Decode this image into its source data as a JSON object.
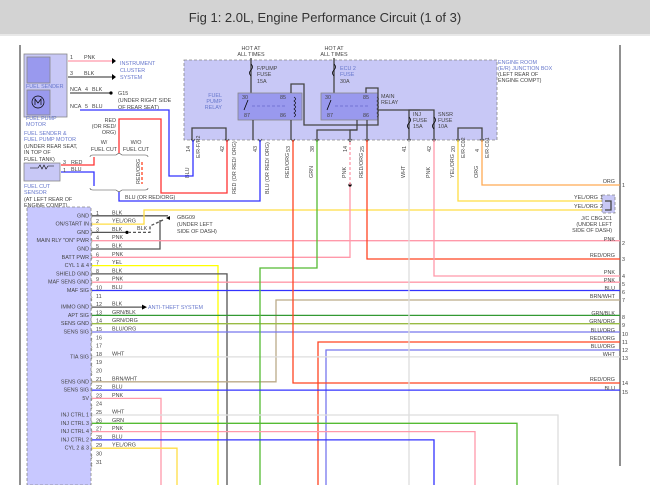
{
  "title": "Fig 1: 2.0L, Engine Performance Circuit (1 of 3)",
  "wire_colors": {
    "PNK": "#ff99aa",
    "BLK": "#555555",
    "RED": "#ff3333",
    "BLU": "#3333ff",
    "GRN": "#55bb33",
    "YEL": "#ffff00",
    "YEL/ORG": "#ffdd44",
    "ORG": "#ffaa55",
    "WHT": "#dddddd",
    "BRN/WHT": "#bbaa88",
    "GRN/BLK": "#339933",
    "GRN/ORG": "#99bb44",
    "BLU/ORG": "#7777ee",
    "RED/ORG": "#ff4422"
  },
  "fuel_sender": {
    "sender_label": "FUEL SENDER",
    "motor_label": [
      "FUEL PUMP",
      "MOTOR"
    ],
    "component": [
      "FUEL SENDER &",
      "FUEL PUMP MOTOR"
    ],
    "location": [
      "(UNDER REAR SEAT,",
      "IN TOP OF",
      "FUEL TANK)"
    ],
    "pin1": "1",
    "pin1_wire": "PNK",
    "pin3": "3",
    "pin3_wire": "BLK",
    "pin4": "4",
    "pin4_wire": "BLK",
    "pin5": "5",
    "pin5_wire": "BLU",
    "nca": "NCA",
    "cluster": [
      "INSTRUMENT",
      "CLUSTER",
      "SYSTEM"
    ],
    "ground": "G15",
    "ground_loc": [
      "(UNDER RIGHT SIDE",
      "OF REAR SEAT)"
    ]
  },
  "fuel_cut": {
    "label": [
      "FUEL CUT",
      "SENSOR"
    ],
    "location": [
      "(AT LEFT REAR OF",
      "ENGINE COMPT)"
    ],
    "pin3": "3",
    "pin3_wire": "RED",
    "pin1": "1",
    "pin1_wire": "BLU",
    "with": [
      "W/",
      "FUEL CUT"
    ],
    "without": [
      "W/O",
      "FUEL CUT"
    ],
    "red_note": [
      "RED",
      "(OR RED/",
      "ORG)"
    ],
    "redorg": "RED/ORG",
    "blu_note": "BLU (OR RED/ORG)"
  },
  "junction_box": {
    "label": [
      "ENGINE ROOM",
      "(E/R) JUNCTION BOX"
    ],
    "location": [
      "(LEFT REAR OF",
      "ENGINE COMPT)"
    ],
    "hot": [
      "HOT AT",
      "ALL TIMES"
    ],
    "fpump_fuse": [
      "F/PUMP",
      "FUSE",
      "15A"
    ],
    "ecu_fuse": [
      "ECU 2",
      "FUSE",
      "30A"
    ],
    "inj_fuse": [
      "INJ",
      "FUSE",
      "15A"
    ],
    "snsr_fuse": [
      "SNSR",
      "FUSE",
      "10A"
    ],
    "fp_relay": [
      "FUEL",
      "PUMP",
      "RELAY"
    ],
    "main_relay": [
      "MAIN",
      "RELAY"
    ],
    "relay_pins": [
      "30",
      "85",
      "87",
      "86"
    ],
    "pins": [
      {
        "num": "14",
        "wire": "BLU",
        "conn": "E/R-F/R2"
      },
      {
        "num": "42",
        "wire": "RED (OR RED/ ORG)",
        "conn": ""
      },
      {
        "num": "43",
        "wire": "BLU (OR RED/ ORG)",
        "conn": ""
      },
      {
        "num": "53",
        "wire": "RED/ORG",
        "conn": ""
      },
      {
        "num": "38",
        "wire": "GRN",
        "conn": ""
      },
      {
        "num": "14",
        "wire": "PNK",
        "conn": ""
      },
      {
        "num": "25",
        "wire": "RED/ORG",
        "conn": ""
      },
      {
        "num": "41",
        "wire": "WHT",
        "conn": ""
      },
      {
        "num": "42",
        "wire": "PNK",
        "conn": ""
      },
      {
        "num": "20",
        "wire": "YEL/ORG",
        "conn": "E/R-C02"
      },
      {
        "num": "4",
        "wire": "ORG",
        "conn": "E/R-C01"
      }
    ]
  },
  "ground_g": {
    "name": "GBG09",
    "location": [
      "(UNDER LEFT",
      "SIDE OF DASH)"
    ],
    "wire": "BLK"
  },
  "anti_theft": "ANTI-THEFT SYSTEM",
  "jc": {
    "name": "J/C CBGJC1",
    "location": [
      "(UNDER LEFT",
      "SIDE OF DASH)"
    ],
    "pins": [
      {
        "num": "1",
        "wire": "YEL/ORG"
      },
      {
        "num": "2",
        "wire": "YEL/ORG"
      }
    ]
  },
  "ecm_pins": [
    {
      "num": "1",
      "label": "GND",
      "wire": "BLK"
    },
    {
      "num": "2",
      "label": "ON/START IN",
      "wire": "YEL/ORG"
    },
    {
      "num": "3",
      "label": "GND",
      "wire": "BLK"
    },
    {
      "num": "4",
      "label": "MAIN RLY \"ON\" PWR",
      "wire": "PNK"
    },
    {
      "num": "5",
      "label": "GND",
      "wire": "BLK"
    },
    {
      "num": "6",
      "label": "BATT PWR",
      "wire": "PNK"
    },
    {
      "num": "7",
      "label": "CYL 1 & 4",
      "wire": "YEL"
    },
    {
      "num": "8",
      "label": "SHIELD GND",
      "wire": "BLK"
    },
    {
      "num": "9",
      "label": "MAF SENS GND",
      "wire": "PNK"
    },
    {
      "num": "10",
      "label": "MAF SIG",
      "wire": "BLU"
    },
    {
      "num": "11",
      "label": "",
      "wire": ""
    },
    {
      "num": "12",
      "label": "IMMO GND",
      "wire": "BLK"
    },
    {
      "num": "13",
      "label": "APT SIG",
      "wire": "GRN/BLK"
    },
    {
      "num": "14",
      "label": "SENS GND",
      "wire": "GRN/ORG"
    },
    {
      "num": "15",
      "label": "SENS SIG",
      "wire": "BLU/ORG"
    },
    {
      "num": "16",
      "label": "",
      "wire": ""
    },
    {
      "num": "17",
      "label": "",
      "wire": ""
    },
    {
      "num": "18",
      "label": "TIA SIG",
      "wire": "WHT"
    },
    {
      "num": "19",
      "label": "",
      "wire": ""
    },
    {
      "num": "20",
      "label": "",
      "wire": ""
    },
    {
      "num": "21",
      "label": "SENS GND",
      "wire": "BRN/WHT"
    },
    {
      "num": "22",
      "label": "SENS SIG",
      "wire": "BLU"
    },
    {
      "num": "23",
      "label": "5V",
      "wire": "PNK"
    },
    {
      "num": "24",
      "label": "",
      "wire": ""
    },
    {
      "num": "25",
      "label": "INJ CTRL 1",
      "wire": "WHT"
    },
    {
      "num": "26",
      "label": "INJ CTRL 3",
      "wire": "GRN"
    },
    {
      "num": "27",
      "label": "INJ CTRL 4",
      "wire": "PNK"
    },
    {
      "num": "28",
      "label": "INJ CTRL 2",
      "wire": "BLU"
    },
    {
      "num": "29",
      "label": "CYL 2 & 3",
      "wire": "YEL/ORG"
    },
    {
      "num": "30",
      "label": "",
      "wire": ""
    },
    {
      "num": "31",
      "label": "",
      "wire": ""
    }
  ],
  "right_pins": [
    {
      "num": "1",
      "wire": "ORG"
    },
    {
      "num": "2",
      "wire": "PNK"
    },
    {
      "num": "3",
      "wire": "RED/ORG"
    },
    {
      "num": "4",
      "wire": "PNK"
    },
    {
      "num": "5",
      "wire": "PNK"
    },
    {
      "num": "6",
      "wire": "BLU"
    },
    {
      "num": "7",
      "wire": "BRN/WHT"
    },
    {
      "num": "8",
      "wire": "GRN/BLK"
    },
    {
      "num": "9",
      "wire": "GRN/ORG"
    },
    {
      "num": "10",
      "wire": "BLU/ORG"
    },
    {
      "num": "11",
      "wire": "RED/ORG"
    },
    {
      "num": "12",
      "wire": "BLU/ORG"
    },
    {
      "num": "13",
      "wire": "WHT"
    },
    {
      "num": "14",
      "wire": "RED/ORG"
    },
    {
      "num": "15",
      "wire": "BLU"
    }
  ]
}
